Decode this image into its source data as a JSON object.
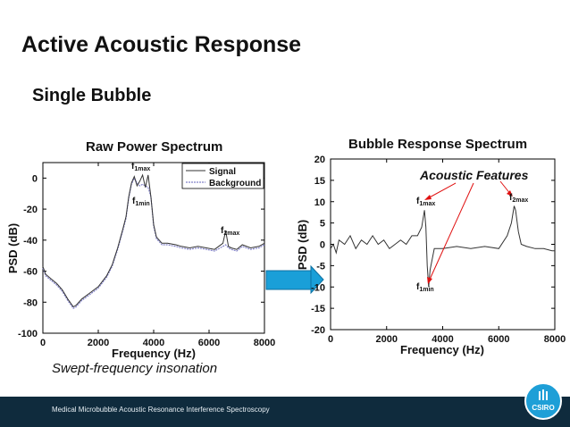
{
  "slide": {
    "title": "Active Acoustic Response",
    "subtitle": "Single Bubble",
    "footnote": "Swept-frequency insonation",
    "footer_text": "Medical Microbubble Acoustic Resonance Interference Spectroscopy",
    "logo_text": "CSIRO",
    "colors": {
      "footer": "#0f2b3d",
      "logo": "#1e9fd7",
      "arrow": "#1a9fd8",
      "annotation": "#e01010",
      "signal": "#333333",
      "background_trace": "#8080c8"
    }
  },
  "chart_data": [
    {
      "type": "line",
      "title": "Raw Power Spectrum",
      "xlabel": "Frequency (Hz)",
      "ylabel": "PSD (dB)",
      "xlim": [
        0,
        8000
      ],
      "ylim": [
        -100,
        10
      ],
      "xticks": [
        0,
        2000,
        4000,
        6000,
        8000
      ],
      "yticks": [
        0,
        -20,
        -40,
        -60,
        -80,
        -100
      ],
      "grid": false,
      "legend": {
        "position": "top-right",
        "entries": [
          "Signal",
          "Background"
        ]
      },
      "series": [
        {
          "name": "Signal",
          "x": [
            0,
            100,
            300,
            500,
            700,
            900,
            1100,
            1200,
            1400,
            1700,
            2000,
            2300,
            2500,
            2700,
            2900,
            3000,
            3100,
            3200,
            3300,
            3400,
            3500,
            3600,
            3700,
            3800,
            3900,
            4000,
            4100,
            4300,
            4500,
            4800,
            5000,
            5300,
            5600,
            5900,
            6200,
            6500,
            6600,
            6700,
            6800,
            7000,
            7200,
            7500,
            7800,
            8000
          ],
          "y": [
            -57,
            -62,
            -65,
            -68,
            -72,
            -78,
            -83,
            -82,
            -78,
            -74,
            -70,
            -63,
            -56,
            -45,
            -32,
            -25,
            -12,
            -3,
            1,
            -5,
            -2,
            2,
            -6,
            2,
            -12,
            -30,
            -38,
            -42,
            -42,
            -43,
            -44,
            -45,
            -44,
            -45,
            -46,
            -42,
            -34,
            -44,
            -45,
            -46,
            -43,
            -45,
            -44,
            -42
          ]
        },
        {
          "name": "Background",
          "x": [
            0,
            100,
            300,
            500,
            700,
            900,
            1100,
            1200,
            1400,
            1700,
            2000,
            2300,
            2500,
            2700,
            2900,
            3000,
            3100,
            3200,
            3300,
            3400,
            3500,
            3600,
            3700,
            3800,
            3900,
            4000,
            4100,
            4300,
            4500,
            4800,
            5000,
            5300,
            5600,
            5900,
            6200,
            6500,
            6600,
            6700,
            6800,
            7000,
            7200,
            7500,
            7800,
            8000
          ],
          "y": [
            -58,
            -63,
            -66,
            -69,
            -73,
            -79,
            -84,
            -83,
            -79,
            -75,
            -71,
            -64,
            -57,
            -46,
            -33,
            -26,
            -13,
            -4,
            0,
            -3,
            -5,
            -4,
            -5,
            -6,
            -12,
            -31,
            -39,
            -43,
            -43,
            -44,
            -45,
            -46,
            -45,
            -46,
            -47,
            -44,
            -43,
            -45,
            -46,
            -47,
            -44,
            -46,
            -45,
            -43
          ]
        }
      ],
      "annotations": [
        "f1max",
        "f1min",
        "f2max"
      ]
    },
    {
      "type": "line",
      "title": "Bubble Response Spectrum",
      "xlabel": "Frequency (Hz)",
      "ylabel": "PSD (dB)",
      "xlim": [
        0,
        8000
      ],
      "ylim": [
        -20,
        20
      ],
      "xticks": [
        0,
        2000,
        4000,
        6000,
        8000
      ],
      "yticks": [
        20,
        15,
        10,
        5,
        0,
        -5,
        -10,
        -15,
        -20
      ],
      "grid": false,
      "series": [
        {
          "x": [
            0,
            100,
            200,
            300,
            500,
            700,
            900,
            1100,
            1300,
            1500,
            1700,
            1900,
            2100,
            2300,
            2500,
            2700,
            2900,
            3100,
            3250,
            3350,
            3400,
            3450,
            3500,
            3550,
            3700,
            4000,
            4500,
            5000,
            5500,
            6000,
            6300,
            6450,
            6550,
            6600,
            6700,
            6800,
            7000,
            7300,
            7600,
            7900,
            8000
          ],
          "y": [
            -1,
            0,
            -2,
            1,
            0,
            2,
            -1,
            1,
            0,
            2,
            0,
            1,
            -1,
            0,
            1,
            0,
            2,
            2,
            4,
            8,
            4,
            -5,
            -10,
            -6,
            -1,
            -1,
            -0.5,
            -1,
            -0.5,
            -1,
            2,
            5,
            9,
            8,
            3,
            0,
            -0.5,
            -1,
            -1,
            -1.5,
            -1.5
          ]
        }
      ],
      "annotations": [
        "Acoustic Features",
        "f1max",
        "f1min",
        "f2max"
      ]
    }
  ]
}
